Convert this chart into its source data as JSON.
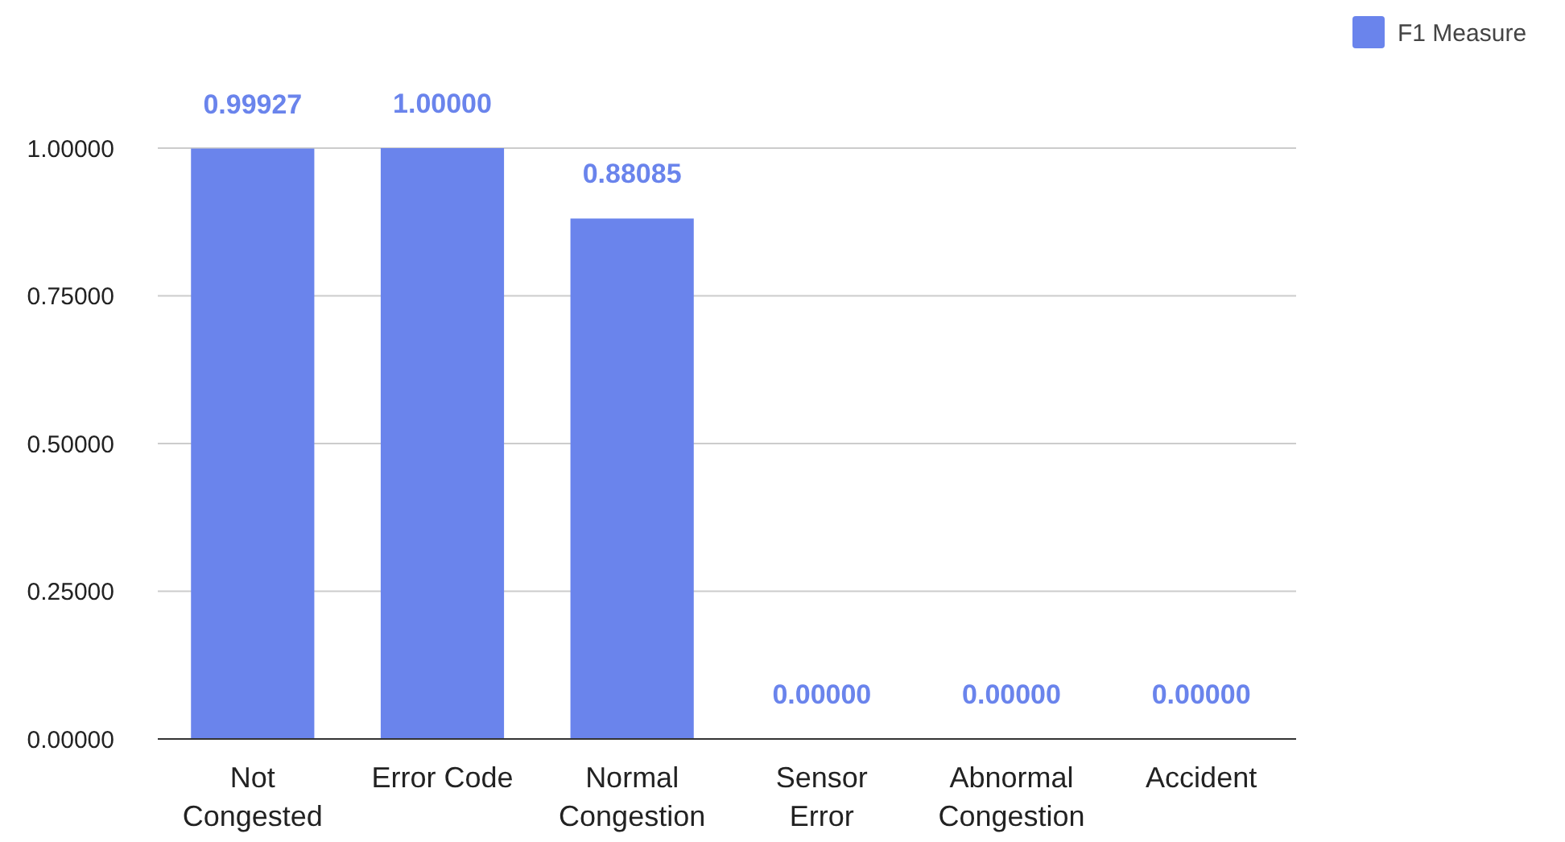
{
  "chart_data": {
    "type": "bar",
    "categories": [
      "Not Congested",
      "Error Code",
      "Normal Congestion",
      "Sensor Error",
      "Abnormal Congestion",
      "Accident"
    ],
    "series": [
      {
        "name": "F1 Measure",
        "color": "#6a84ec",
        "values": [
          0.99927,
          1.0,
          0.88085,
          0,
          0,
          0
        ],
        "value_labels": [
          "0.99927",
          "1.00000",
          "0.88085",
          "0.00000",
          "0.00000",
          "0.00000"
        ]
      }
    ],
    "ylim": [
      0,
      1
    ],
    "yticks": [
      {
        "value": 0,
        "label": "0.00000"
      },
      {
        "value": 0.25,
        "label": "0.25000"
      },
      {
        "value": 0.5,
        "label": "0.50000"
      },
      {
        "value": 0.75,
        "label": "0.75000"
      },
      {
        "value": 1,
        "label": "1.00000"
      }
    ],
    "grid": "y",
    "legend": "top right"
  }
}
